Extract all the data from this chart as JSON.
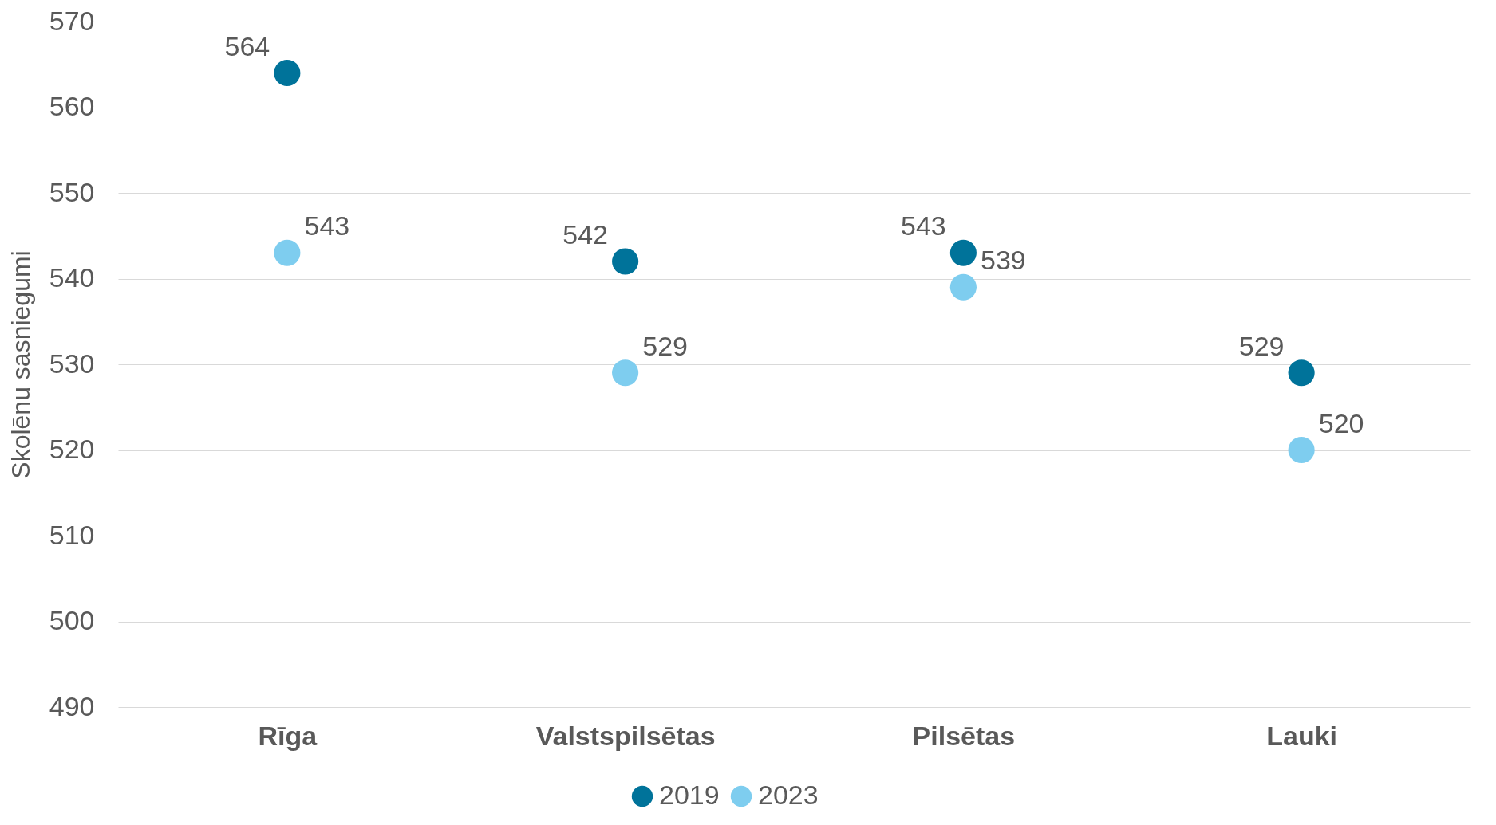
{
  "chart_data": {
    "type": "scatter",
    "ylabel": "Skolēnu sasniegumi",
    "categories": [
      "Rīga",
      "Valstspilsētas",
      "Pilsētas",
      "Lauki"
    ],
    "series": [
      {
        "name": "2019",
        "color": "#00739a",
        "values": [
          564,
          542,
          543,
          529
        ]
      },
      {
        "name": "2023",
        "color": "#7ecdef",
        "values": [
          543,
          529,
          539,
          520
        ]
      }
    ],
    "ylim": [
      490,
      570
    ],
    "yticks": [
      490,
      500,
      510,
      520,
      530,
      540,
      550,
      560,
      570
    ],
    "grid": "y",
    "legend": "bottom",
    "marker": "circle",
    "data_labels": true
  }
}
